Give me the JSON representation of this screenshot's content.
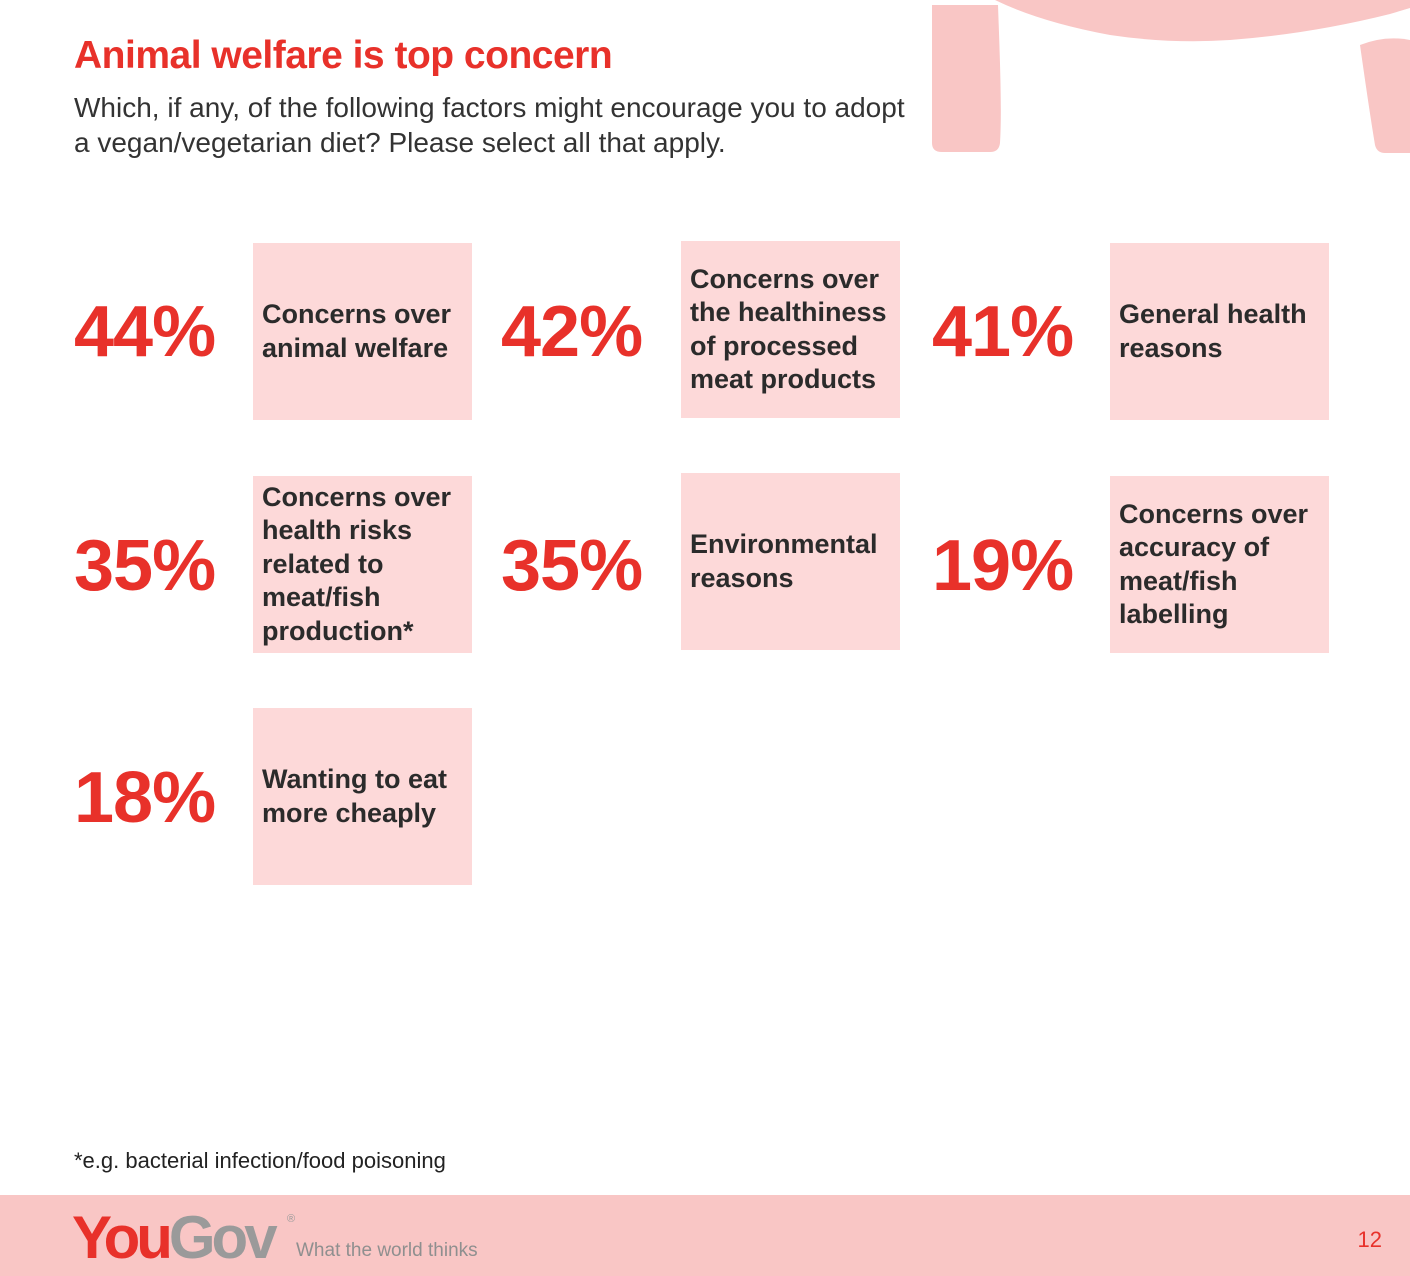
{
  "page": {
    "title": "Animal welfare is top concern",
    "subtitle": "Which, if any, of the following factors might encourage you to adopt a vegan/vegetarian diet? Please select all that apply."
  },
  "stats": [
    {
      "value": "44%",
      "label": "Concerns over animal welfare"
    },
    {
      "value": "42%",
      "label": "Concerns over the healthiness of processed meat products"
    },
    {
      "value": "41%",
      "label": "General health reasons"
    },
    {
      "value": "35%",
      "label": "Concerns over health risks related to meat/fish production*"
    },
    {
      "value": "35%",
      "label": "Environmental reasons"
    },
    {
      "value": "19%",
      "label": "Concerns over accuracy of meat/fish labelling"
    },
    {
      "value": "18%",
      "label": "Wanting to eat more cheaply"
    }
  ],
  "footnote": "*e.g. bacterial infection/food poisoning",
  "footer": {
    "logo_you": "You",
    "logo_gov": "Gov",
    "registered_mark": "®",
    "tagline": "What the world thinks",
    "page_number": "12"
  },
  "colors": {
    "accent": "#e8312a",
    "box_fill": "#fdd9d9",
    "footer_fill": "#f9c6c5",
    "decor_fill": "#f9c6c5"
  }
}
